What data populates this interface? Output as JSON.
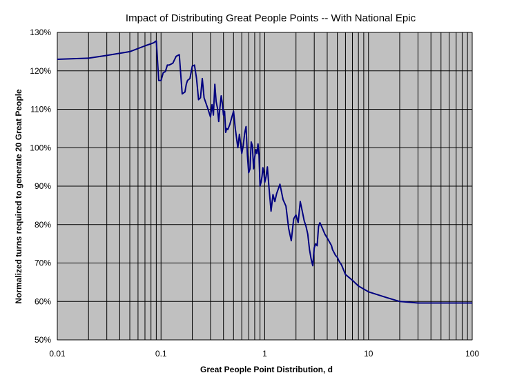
{
  "chart_data": {
    "type": "line",
    "title": "Impact of Distributing Great People Points -- With National Epic",
    "xlabel": "Great People Point Distribution, d",
    "ylabel": "Normalized turns required to generate 20 Great People",
    "xscale": "log",
    "xlim": [
      0.01,
      100
    ],
    "ylim": [
      50,
      130
    ],
    "x_tick_labels": [
      "0.01",
      "0.1",
      "1",
      "10",
      "100"
    ],
    "y_tick_labels": [
      "50%",
      "60%",
      "70%",
      "80%",
      "90%",
      "100%",
      "110%",
      "120%",
      "130%"
    ],
    "grid": true,
    "plot_background": "#c0c0c0",
    "line_color": "#000080",
    "series": [
      {
        "x": [
          0.01,
          0.02,
          0.03,
          0.05,
          0.07,
          0.085,
          0.09,
          0.095,
          0.1,
          0.105,
          0.11,
          0.115,
          0.12,
          0.13,
          0.14,
          0.15,
          0.16,
          0.17,
          0.175,
          0.18,
          0.19,
          0.2,
          0.21,
          0.22,
          0.23,
          0.24,
          0.25,
          0.26,
          0.28,
          0.3,
          0.31,
          0.32,
          0.33,
          0.34,
          0.35,
          0.36,
          0.37,
          0.38,
          0.39,
          0.4,
          0.41,
          0.42,
          0.43,
          0.44,
          0.46,
          0.48,
          0.5,
          0.52,
          0.55,
          0.57,
          0.6,
          0.62,
          0.64,
          0.66,
          0.68,
          0.7,
          0.72,
          0.74,
          0.76,
          0.78,
          0.8,
          0.82,
          0.84,
          0.86,
          0.88,
          0.9,
          0.92,
          0.94,
          0.96,
          0.98,
          1.0,
          1.03,
          1.06,
          1.1,
          1.15,
          1.2,
          1.25,
          1.3,
          1.4,
          1.5,
          1.6,
          1.7,
          1.8,
          1.9,
          2.0,
          2.1,
          2.2,
          2.3,
          2.4,
          2.5,
          2.6,
          2.7,
          2.8,
          2.9,
          3.0,
          3.1,
          3.2,
          3.3,
          3.4,
          3.6,
          3.8,
          4.0,
          4.2,
          4.4,
          4.5,
          4.6,
          4.8,
          5.0,
          5.2,
          5.5,
          6,
          7,
          8,
          10,
          15,
          20,
          30,
          50,
          70,
          100
        ],
        "y": [
          123,
          123.3,
          124,
          125,
          126.5,
          127.3,
          127.8,
          117.5,
          117.5,
          119.5,
          119.8,
          121.5,
          121.5,
          122,
          123.8,
          124.2,
          114,
          114.5,
          116.5,
          117.5,
          118,
          121.2,
          121.5,
          118,
          112.5,
          113,
          118,
          113,
          110.5,
          108,
          111.2,
          108.5,
          116.5,
          112,
          110.3,
          106.8,
          110.5,
          113.5,
          111.5,
          108.5,
          109.5,
          104,
          105,
          104.7,
          106,
          107.8,
          109.5,
          105,
          100,
          103.5,
          98.5,
          100.5,
          103.8,
          105.5,
          98.2,
          93.5,
          94.5,
          101.5,
          100.5,
          94.5,
          97.5,
          99.5,
          98.5,
          101,
          98,
          90,
          91,
          92.5,
          94.8,
          93.5,
          91,
          92.5,
          95,
          89.5,
          83.5,
          87.8,
          86,
          88,
          90.5,
          86.5,
          84.8,
          79,
          75.8,
          81.5,
          82.5,
          80.5,
          86,
          83.5,
          81,
          79.5,
          77.5,
          73.5,
          71,
          69.3,
          74,
          75,
          74.5,
          79.5,
          80.5,
          79,
          77.5,
          76.5,
          75.5,
          74.5,
          73.5,
          73,
          72,
          71.5,
          70.5,
          69.5,
          67,
          65.5,
          64,
          62.5,
          61,
          60,
          59.6,
          59.6,
          59.6,
          59.6
        ]
      }
    ]
  }
}
